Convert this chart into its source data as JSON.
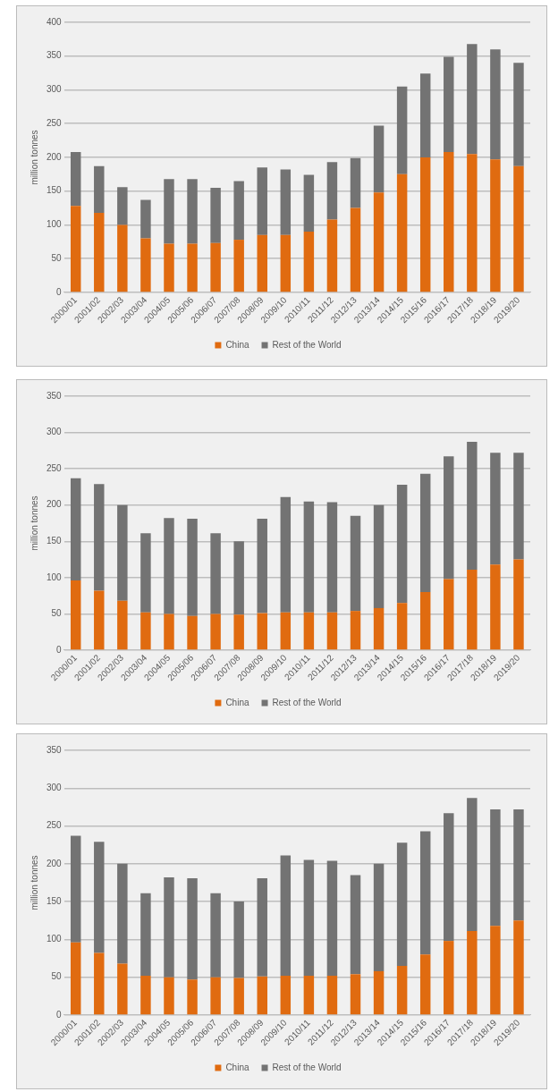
{
  "chart_data": [
    {
      "type": "bar",
      "ylabel": "million tonnes",
      "categories": [
        "2000/01",
        "2001/02",
        "2002/03",
        "2003/04",
        "2004/05",
        "2005/06",
        "2006/07",
        "2007/08",
        "2008/09",
        "2009/10",
        "2010/11",
        "2011/12",
        "2012/13",
        "2013/14",
        "2014/15",
        "2015/16",
        "2016/17",
        "2017/18",
        "2018/19",
        "2019/20"
      ],
      "stacked": true,
      "ylim": [
        0,
        400
      ],
      "yticks": [
        0,
        50,
        100,
        150,
        200,
        250,
        300,
        350,
        400
      ],
      "grid": "y",
      "legend": "bottom",
      "series": [
        {
          "name": "China",
          "color": "#e06b10",
          "values": [
            128,
            118,
            100,
            80,
            72,
            72,
            73,
            78,
            85,
            85,
            90,
            108,
            125,
            148,
            175,
            200,
            208,
            205,
            197,
            187
          ]
        },
        {
          "name": "Rest of the World",
          "color": "#737373",
          "values": [
            80,
            69,
            56,
            57,
            96,
            96,
            82,
            87,
            100,
            97,
            84,
            85,
            74,
            99,
            130,
            124,
            141,
            163,
            163,
            153
          ]
        }
      ]
    },
    {
      "type": "bar",
      "ylabel": "million tonnes",
      "categories": [
        "2000/01",
        "2001/02",
        "2002/03",
        "2003/04",
        "2004/05",
        "2005/06",
        "2006/07",
        "2007/08",
        "2008/09",
        "2009/10",
        "2010/11",
        "2011/12",
        "2012/13",
        "2013/14",
        "2014/15",
        "2015/16",
        "2016/17",
        "2017/18",
        "2018/19",
        "2019/20"
      ],
      "stacked": true,
      "ylim": [
        0,
        350
      ],
      "yticks": [
        0,
        50,
        100,
        150,
        200,
        250,
        300,
        350
      ],
      "grid": "y",
      "legend": "bottom",
      "series": [
        {
          "name": "China",
          "color": "#e06b10",
          "values": [
            96,
            82,
            68,
            52,
            50,
            47,
            50,
            49,
            51,
            52,
            52,
            52,
            54,
            58,
            65,
            80,
            98,
            111,
            118,
            125
          ]
        },
        {
          "name": "Rest of the World",
          "color": "#737373",
          "values": [
            141,
            147,
            132,
            109,
            132,
            134,
            111,
            101,
            130,
            159,
            153,
            152,
            131,
            142,
            163,
            163,
            169,
            176,
            154,
            147
          ]
        }
      ]
    },
    {
      "type": "bar",
      "ylabel": "million tonnes",
      "categories": [
        "2000/01",
        "2001/02",
        "2002/03",
        "2003/04",
        "2004/05",
        "2005/06",
        "2006/07",
        "2007/08",
        "2008/09",
        "2009/10",
        "2010/11",
        "2011/12",
        "2012/13",
        "2013/14",
        "2014/15",
        "2015/16",
        "2016/17",
        "2017/18",
        "2018/19",
        "2019/20"
      ],
      "stacked": true,
      "ylim": [
        0,
        350
      ],
      "yticks": [
        0,
        50,
        100,
        150,
        200,
        250,
        300,
        350
      ],
      "grid": "y",
      "legend": "bottom",
      "series": [
        {
          "name": "China",
          "color": "#e06b10",
          "values": [
            96,
            82,
            68,
            52,
            50,
            47,
            50,
            49,
            51,
            52,
            52,
            52,
            54,
            58,
            65,
            80,
            98,
            111,
            118,
            125
          ]
        },
        {
          "name": "Rest of the World",
          "color": "#737373",
          "values": [
            141,
            147,
            132,
            109,
            132,
            134,
            111,
            101,
            130,
            159,
            153,
            152,
            131,
            142,
            163,
            163,
            169,
            176,
            154,
            147
          ]
        }
      ]
    }
  ]
}
